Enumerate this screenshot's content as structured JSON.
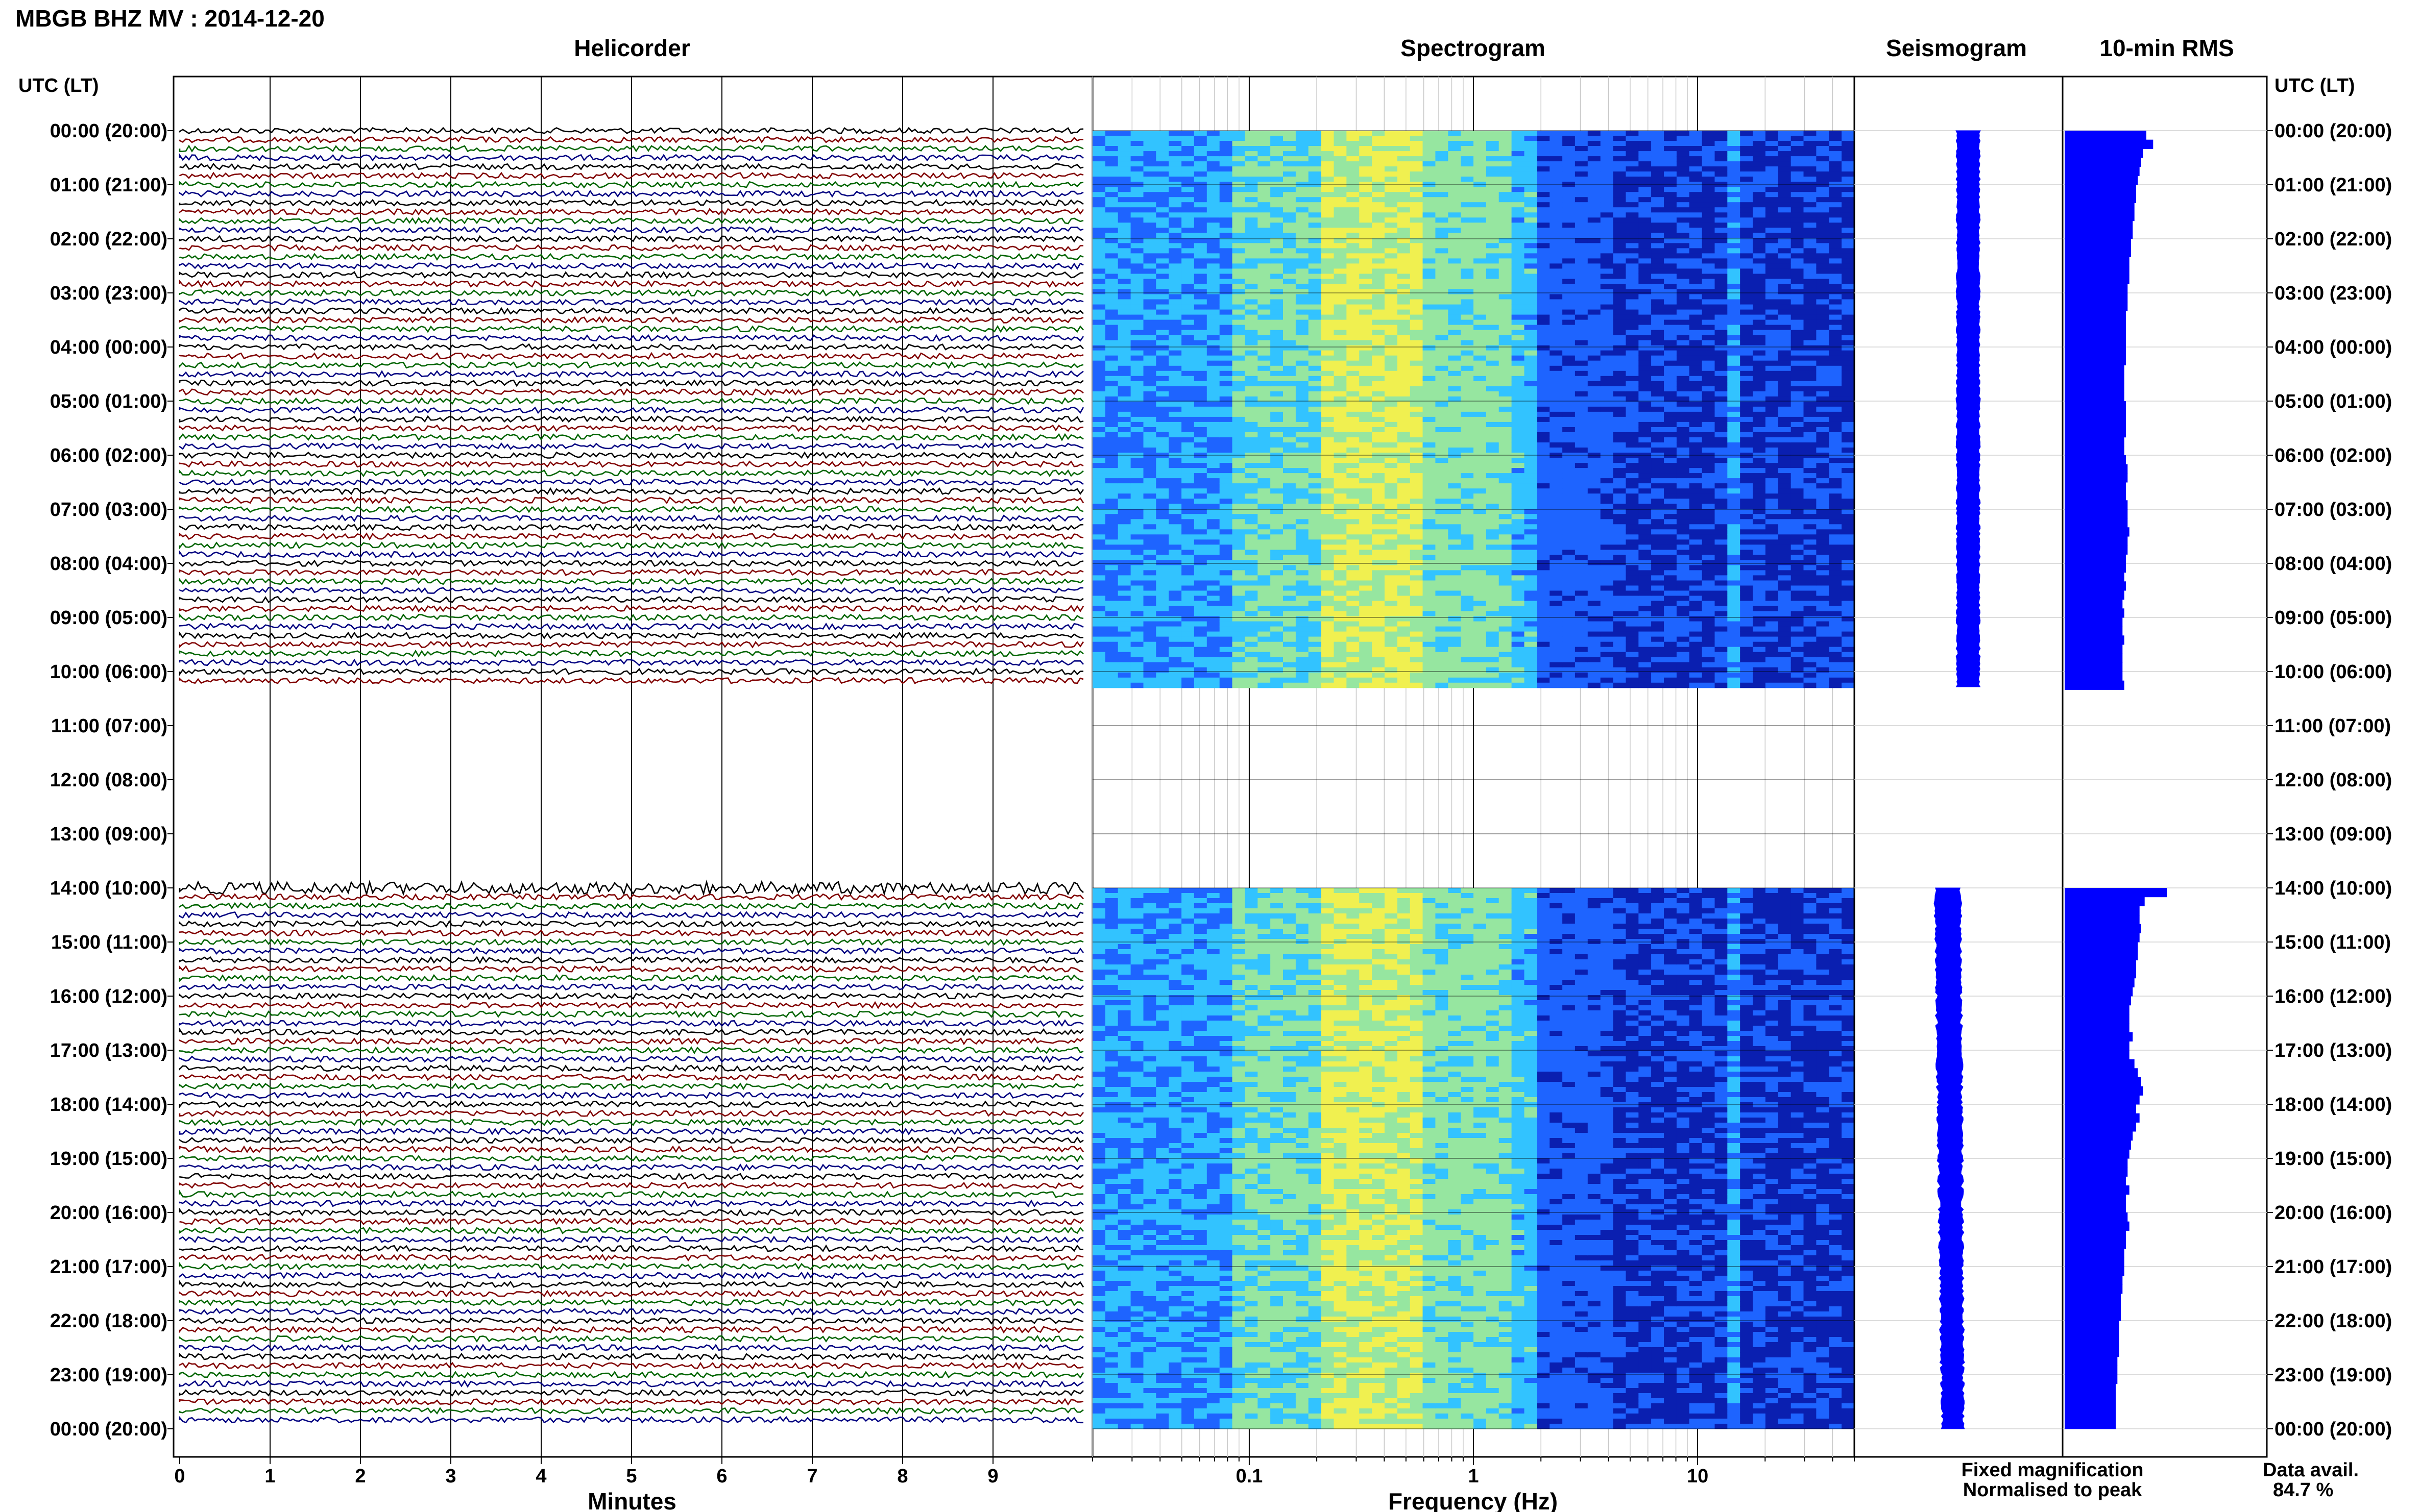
{
  "header": {
    "title": "MBGB BHZ MV : 2014-12-20"
  },
  "panels": {
    "helicorder": "Helicorder",
    "spectrogram": "Spectrogram",
    "seismogram": "Seismogram",
    "rms": "10-min RMS"
  },
  "axes": {
    "left_time_label": "UTC (LT)",
    "right_time_label": "UTC (LT)",
    "minutes_label": "Minutes",
    "frequency_label": "Frequency (Hz)",
    "minute_ticks": [
      "0",
      "1",
      "2",
      "3",
      "4",
      "5",
      "6",
      "7",
      "8",
      "9"
    ],
    "frequency_ticks": [
      "0.1",
      "1",
      "10"
    ]
  },
  "legend": {
    "fixed": "Fixed magnification",
    "normalised": "Normalised to peak",
    "fixed_color": "#0000ff",
    "normalised_color": "#ff0000"
  },
  "availability": {
    "label": "Data avail.",
    "value": "84.7 %"
  },
  "colors": {
    "trace_cycle": [
      "#000000",
      "#800000",
      "#006400",
      "#000080"
    ],
    "spectrogram_palette": [
      "#0a1fb0",
      "#1e64ff",
      "#32c3ff",
      "#96e6a0",
      "#f0f050"
    ],
    "bar_fill": "#0000ff"
  },
  "chart_data": {
    "type": "helicorder",
    "time_labels": [
      "00:00 (20:00)",
      "01:00 (21:00)",
      "02:00 (22:00)",
      "03:00 (23:00)",
      "04:00 (00:00)",
      "05:00 (01:00)",
      "06:00 (02:00)",
      "07:00 (03:00)",
      "08:00 (04:00)",
      "09:00 (05:00)",
      "10:00 (06:00)",
      "11:00 (07:00)",
      "12:00 (08:00)",
      "13:00 (09:00)",
      "14:00 (10:00)",
      "15:00 (11:00)",
      "16:00 (12:00)",
      "17:00 (13:00)",
      "18:00 (14:00)",
      "19:00 (15:00)",
      "20:00 (16:00)",
      "21:00 (17:00)",
      "22:00 (18:00)",
      "23:00 (19:00)",
      "00:00 (20:00)"
    ],
    "x_minutes_range": [
      0,
      10
    ],
    "frequency_range_hz": [
      0.02,
      50
    ],
    "frequency_scale": "log",
    "data_segments_hours": [
      [
        0,
        10.3
      ],
      [
        14,
        24
      ]
    ],
    "gap_hours": [
      10.3,
      14
    ],
    "rows_per_hour": 6,
    "rms_by_row": [
      0.48,
      0.52,
      0.46,
      0.45,
      0.44,
      0.43,
      0.42,
      0.42,
      0.41,
      0.41,
      0.4,
      0.4,
      0.39,
      0.39,
      0.38,
      0.38,
      0.38,
      0.37,
      0.37,
      0.37,
      0.36,
      0.36,
      0.36,
      0.36,
      0.36,
      0.36,
      0.35,
      0.35,
      0.35,
      0.35,
      0.36,
      0.36,
      0.36,
      0.36,
      0.35,
      0.35,
      0.36,
      0.37,
      0.37,
      0.36,
      0.36,
      0.37,
      0.37,
      0.37,
      0.38,
      0.37,
      0.37,
      0.36,
      0.36,
      0.35,
      0.36,
      0.35,
      0.34,
      0.35,
      0.34,
      0.34,
      0.35,
      0.34,
      0.34,
      0.34,
      0.34,
      0.35,
      0.6,
      0.47,
      0.44,
      0.44,
      0.45,
      0.44,
      0.43,
      0.43,
      0.42,
      0.42,
      0.41,
      0.4,
      0.39,
      0.38,
      0.38,
      0.38,
      0.4,
      0.38,
      0.38,
      0.41,
      0.43,
      0.45,
      0.46,
      0.44,
      0.42,
      0.44,
      0.42,
      0.4,
      0.39,
      0.38,
      0.37,
      0.37,
      0.36,
      0.38,
      0.36,
      0.36,
      0.37,
      0.38,
      0.36,
      0.36,
      0.35,
      0.35,
      0.35,
      0.34,
      0.34,
      0.33,
      0.33,
      0.33,
      0.32,
      0.32,
      0.32,
      0.32,
      0.31,
      0.31,
      0.31,
      0.3,
      0.3,
      0.3,
      0.3,
      0.3
    ]
  }
}
